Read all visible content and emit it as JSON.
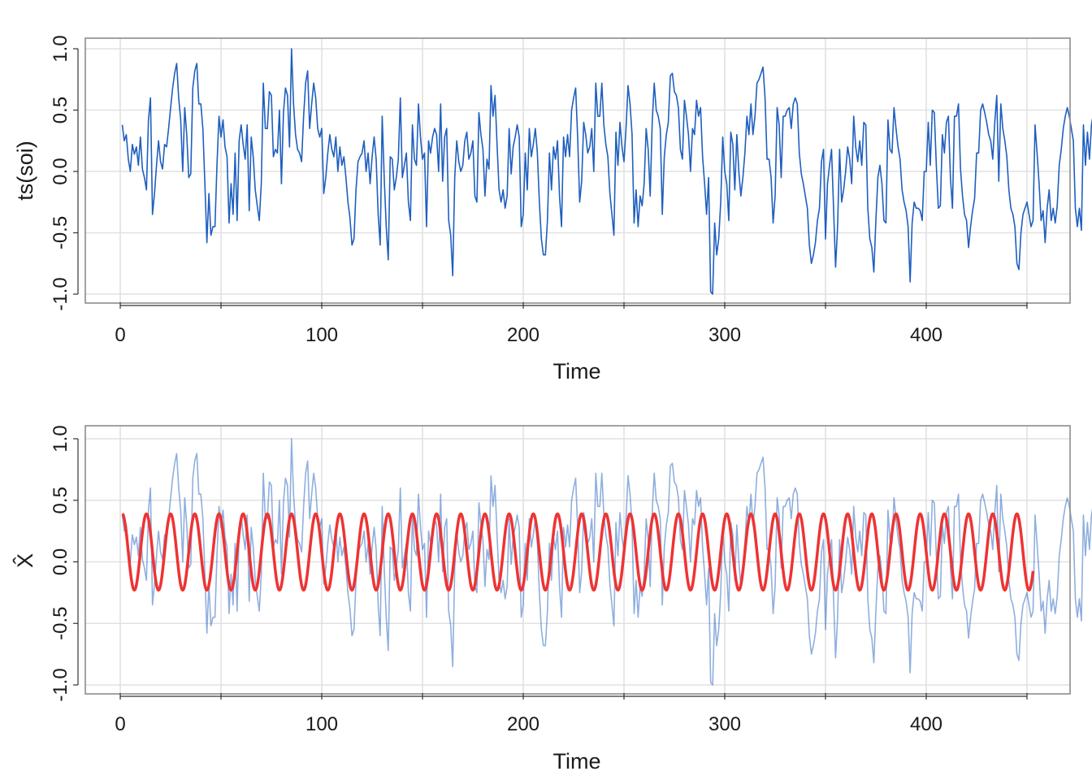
{
  "chart_data": [
    {
      "type": "line",
      "ylabel": "ts(soi)",
      "xlabel": "Time",
      "xlim": [
        -2,
        455
      ],
      "ylim": [
        -1.05,
        1.05
      ],
      "x_ticks": [
        0,
        100,
        200,
        300,
        400
      ],
      "x_tick_labels": [
        "0",
        "100",
        "200",
        "300",
        "400"
      ],
      "y_ticks": [
        -1.0,
        -0.5,
        0.0,
        0.5,
        1.0
      ],
      "y_tick_labels": [
        "-1.0",
        "-0.5",
        "0.0",
        "0.5",
        "1.0"
      ],
      "grid": true,
      "series": [
        {
          "color": "#1f5fbf",
          "x_start": 1,
          "values": [
            0.38,
            0.25,
            0.3,
            0.1,
            0.0,
            0.22,
            0.14,
            0.2,
            0.05,
            0.28,
            0.02,
            -0.05,
            -0.15,
            0.42,
            0.6,
            -0.35,
            -0.18,
            0.05,
            0.25,
            0.08,
            0.02,
            0.22,
            0.2,
            0.35,
            0.52,
            0.68,
            0.8,
            0.88,
            0.6,
            0.42,
            0.0,
            0.52,
            0.3,
            -0.05,
            -0.02,
            0.68,
            0.82,
            0.88,
            0.55,
            0.55,
            0.35,
            -0.1,
            -0.58,
            -0.18,
            -0.52,
            -0.45,
            -0.45,
            0.05,
            0.45,
            0.28,
            0.42,
            0.2,
            0.12,
            -0.42,
            -0.1,
            -0.35,
            0.15,
            -0.4,
            0.25,
            0.38,
            0.22,
            0.1,
            0.38,
            -0.32,
            0.28,
            0.12,
            -0.15,
            -0.28,
            -0.4,
            -0.1,
            0.72,
            0.35,
            0.35,
            0.65,
            0.62,
            0.12,
            0.18,
            0.15,
            0.5,
            -0.1,
            0.48,
            0.68,
            0.62,
            0.2,
            1.0,
            0.55,
            0.3,
            0.18,
            0.15,
            0.08,
            0.45,
            0.72,
            0.82,
            0.35,
            0.55,
            0.72,
            0.6,
            0.35,
            0.28,
            0.35,
            -0.18,
            -0.05,
            0.15,
            0.3,
            0.18,
            0.12,
            0.28,
            0.0,
            0.2,
            0.05,
            0.12,
            -0.05,
            -0.25,
            -0.38,
            -0.6,
            -0.55,
            -0.15,
            0.08,
            0.12,
            0.15,
            0.25,
            0.0,
            0.15,
            -0.1,
            0.12,
            0.28,
            0.1,
            -0.35,
            -0.6,
            0.45,
            -0.05,
            -0.45,
            -0.72,
            0.12,
            0.1,
            -0.15,
            -0.05,
            0.1,
            0.6,
            -0.05,
            0.05,
            0.15,
            -0.25,
            -0.4,
            0.38,
            0.1,
            0.05,
            0.55,
            0.28,
            0.1,
            0.15,
            -0.45,
            0.25,
            0.15,
            0.28,
            0.35,
            0.3,
            0.0,
            0.55,
            -0.08,
            0.28,
            0.35,
            -0.4,
            -0.52,
            -0.85,
            -0.05,
            0.25,
            0.08,
            0.0,
            0.05,
            0.25,
            0.32,
            0.1,
            0.15,
            0.25,
            -0.2,
            -0.25,
            0.48,
            0.3,
            0.18,
            -0.2,
            0.1,
            0.02,
            0.7,
            0.45,
            0.62,
            0.22,
            -0.15,
            -0.25,
            -0.15,
            -0.3,
            -0.2,
            0.35,
            -0.02,
            0.2,
            0.28,
            0.38,
            0.28,
            -0.45,
            -0.35,
            0.15,
            -0.15,
            0.35,
            0.12,
            0.22,
            0.35,
            0.15,
            -0.25,
            -0.55,
            -0.68,
            -0.68,
            -0.4,
            0.15,
            -0.15,
            0.2,
            0.1,
            0.25,
            -0.2,
            -0.45,
            0.28,
            0.12,
            0.3,
            0.12,
            0.5,
            0.6,
            0.68,
            0.28,
            -0.25,
            -0.08,
            0.4,
            0.3,
            0.15,
            0.2,
            0.35,
            0.0,
            0.72,
            0.45,
            0.45,
            0.72,
            0.38,
            0.22,
            0.12,
            -0.18,
            -0.35,
            -0.52,
            0.32,
            0.05,
            0.4,
            0.2,
            0.08,
            0.35,
            0.7,
            0.55,
            0.3,
            -0.42,
            -0.15,
            -0.45,
            -0.2,
            -0.28,
            -0.1,
            0.35,
            0.18,
            -0.2,
            0.4,
            0.72,
            0.5,
            0.45,
            0.35,
            -0.35,
            0.12,
            0.3,
            0.4,
            0.78,
            0.8,
            0.65,
            0.62,
            0.52,
            0.18,
            0.1,
            0.58,
            0.45,
            0.3,
            0.0,
            0.35,
            0.3,
            0.58,
            0.45,
            0.52,
            0.12,
            -0.1,
            -0.35,
            -0.05,
            -0.98,
            -1.0,
            -0.42,
            -0.68,
            -0.55,
            -0.25,
            0.28,
            0.0,
            -0.1,
            -0.4,
            0.32,
            0.22,
            -0.15,
            0.3,
            0.0,
            -0.2,
            -0.05,
            0.15,
            0.45,
            0.3,
            0.55,
            0.3,
            0.45,
            0.72,
            0.75,
            0.8,
            0.85,
            0.6,
            0.1,
            0.1,
            -0.05,
            -0.42,
            -0.2,
            0.52,
            0.38,
            -0.05,
            0.45,
            0.45,
            0.5,
            0.52,
            0.35,
            0.55,
            0.6,
            0.55,
            0.15,
            -0.02,
            -0.1,
            -0.2,
            -0.3,
            -0.6,
            -0.75,
            -0.68,
            -0.58,
            -0.4,
            -0.3,
            0.08,
            0.18,
            -0.55,
            -0.1,
            0.05,
            0.18,
            -0.3,
            -0.78,
            -0.45,
            0.18,
            -0.25,
            -0.15,
            0.0,
            0.2,
            0.1,
            -0.1,
            0.45,
            0.2,
            0.08,
            0.25,
            0.05,
            0.4,
            0.38,
            -0.3,
            -0.55,
            -0.62,
            -0.82,
            -0.4,
            -0.05,
            0.05,
            -0.1,
            -0.4,
            -0.42,
            0.42,
            0.18,
            0.15,
            0.52,
            0.35,
            0.2,
            0.1,
            -0.15,
            -0.25,
            -0.32,
            -0.45,
            -0.9,
            -0.42,
            -0.25,
            -0.3,
            -0.3,
            -0.32,
            -0.4,
            0.0,
            0.0,
            0.4,
            0.05,
            0.5,
            0.48,
            0.05,
            -0.3,
            -0.28,
            0.3,
            0.15,
            0.4,
            0.45,
            -0.05,
            -0.3,
            0.45,
            0.45,
            0.55,
            0.02,
            -0.2,
            -0.35,
            -0.4,
            -0.62,
            -0.45,
            -0.32,
            -0.22,
            0.15,
            0.15,
            0.5,
            0.55,
            0.48,
            0.4,
            0.3,
            0.25,
            0.1,
            0.4,
            0.62,
            -0.08,
            0.55,
            0.35,
            0.25,
            0.12,
            -0.15,
            -0.3,
            -0.35,
            -0.45,
            -0.75,
            -0.8,
            -0.5,
            -0.35,
            -0.3,
            -0.25,
            -0.35,
            -0.45,
            -0.4,
            0.38,
            0.15,
            -0.1,
            -0.4,
            -0.32,
            -0.58,
            -0.3,
            -0.15,
            -0.4,
            -0.3,
            -0.42,
            -0.28,
            0.05,
            0.18,
            0.35,
            0.45,
            0.52,
            0.45,
            0.35,
            0.25,
            -0.3,
            -0.45,
            -0.3,
            -0.48,
            0.38,
            0.05,
            0.32,
            0.1,
            0.38,
            0.48,
            0.28,
            0.2,
            0.08
          ]
        }
      ]
    },
    {
      "type": "line",
      "ylabel": "X̂",
      "xlabel": "Time",
      "xlim": [
        -2,
        455
      ],
      "ylim": [
        -1.05,
        1.05
      ],
      "x_ticks": [
        0,
        100,
        200,
        300,
        400
      ],
      "x_tick_labels": [
        "0",
        "100",
        "200",
        "300",
        "400"
      ],
      "y_ticks": [
        -1.0,
        -0.5,
        0.0,
        0.5,
        1.0
      ],
      "y_tick_labels": [
        "-1.0",
        "-0.5",
        "0.0",
        "0.5",
        "1.0"
      ],
      "grid": true,
      "series": [
        {
          "color": "#1f5fbf",
          "opacity": 0.5,
          "same_as_first_chart": true
        },
        {
          "color": "#ee3333",
          "type": "sinusoid",
          "mean": 0.08,
          "amplitude": 0.31,
          "period": 12,
          "x_start": 1,
          "x_end": 453,
          "value_at_start": 0.39
        }
      ]
    }
  ]
}
